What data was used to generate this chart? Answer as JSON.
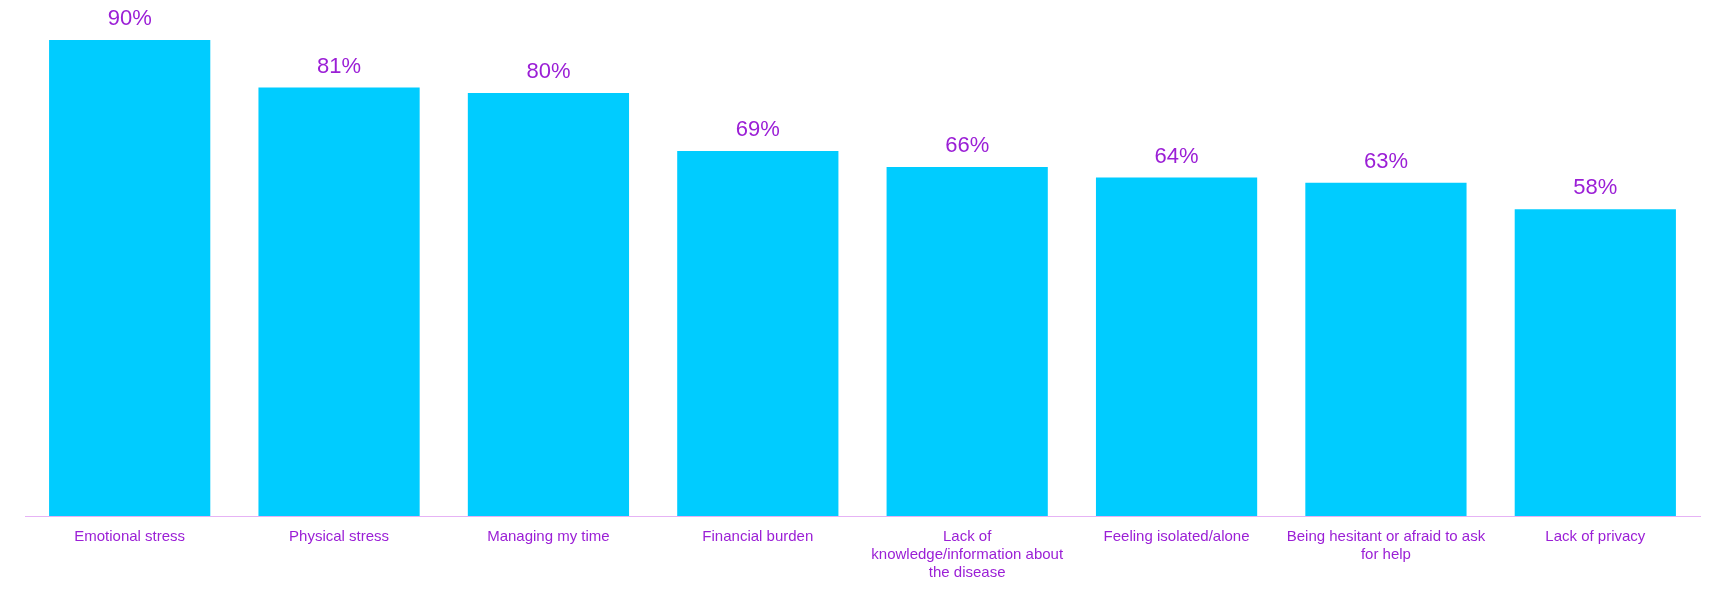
{
  "chart_data": {
    "type": "bar",
    "categories": [
      "Emotional stress",
      "Physical stress",
      "Managing my time",
      "Financial burden",
      "Lack of knowledge/information about the disease",
      "Feeling isolated/alone",
      "Being hesitant or afraid to ask for help",
      "Lack of privacy"
    ],
    "values": [
      90,
      81,
      80,
      69,
      66,
      64,
      63,
      58
    ],
    "value_labels": [
      "90%",
      "81%",
      "80%",
      "69%",
      "66%",
      "64%",
      "63%",
      "58%"
    ],
    "color": "#00ccff",
    "grid": false,
    "legend": false
  }
}
